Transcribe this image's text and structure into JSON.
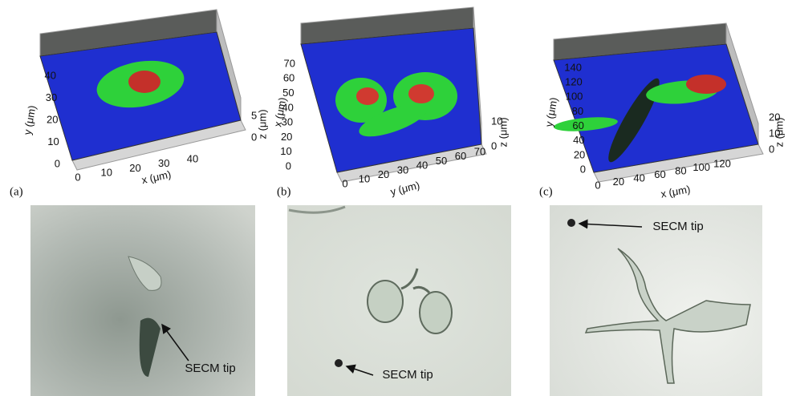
{
  "panels": [
    {
      "label": "(a)",
      "plot": {
        "left_axis_label": "y (μm)",
        "bottom_axis_label": "x (μm)",
        "z_axis_label": "z (μm)",
        "left_ticks": [
          0,
          10,
          20,
          30,
          40
        ],
        "bottom_ticks": [
          0,
          10,
          20,
          30,
          40
        ],
        "z_ticks": [
          0,
          5
        ]
      },
      "micrograph": {
        "annotation": "SECM tip"
      }
    },
    {
      "label": "(b)",
      "plot": {
        "left_axis_label": "x (μm)",
        "bottom_axis_label": "y (μm)",
        "z_axis_label": "z (μm)",
        "left_ticks": [
          0,
          10,
          20,
          30,
          40,
          50,
          60,
          70
        ],
        "bottom_ticks": [
          0,
          10,
          20,
          30,
          40,
          50,
          60,
          70
        ],
        "z_ticks": [
          0,
          10
        ]
      },
      "micrograph": {
        "annotation": "SECM tip"
      }
    },
    {
      "label": "(c)",
      "plot": {
        "left_axis_label": "y (μm)",
        "bottom_axis_label": "x (μm)",
        "z_axis_label": "z (μm)",
        "left_ticks": [
          0,
          20,
          40,
          60,
          80,
          100,
          120,
          140
        ],
        "bottom_ticks": [
          0,
          20,
          40,
          60,
          80,
          100,
          120
        ],
        "z_ticks": [
          0,
          10,
          20
        ]
      },
      "micrograph": {
        "annotation": "SECM tip"
      }
    }
  ]
}
